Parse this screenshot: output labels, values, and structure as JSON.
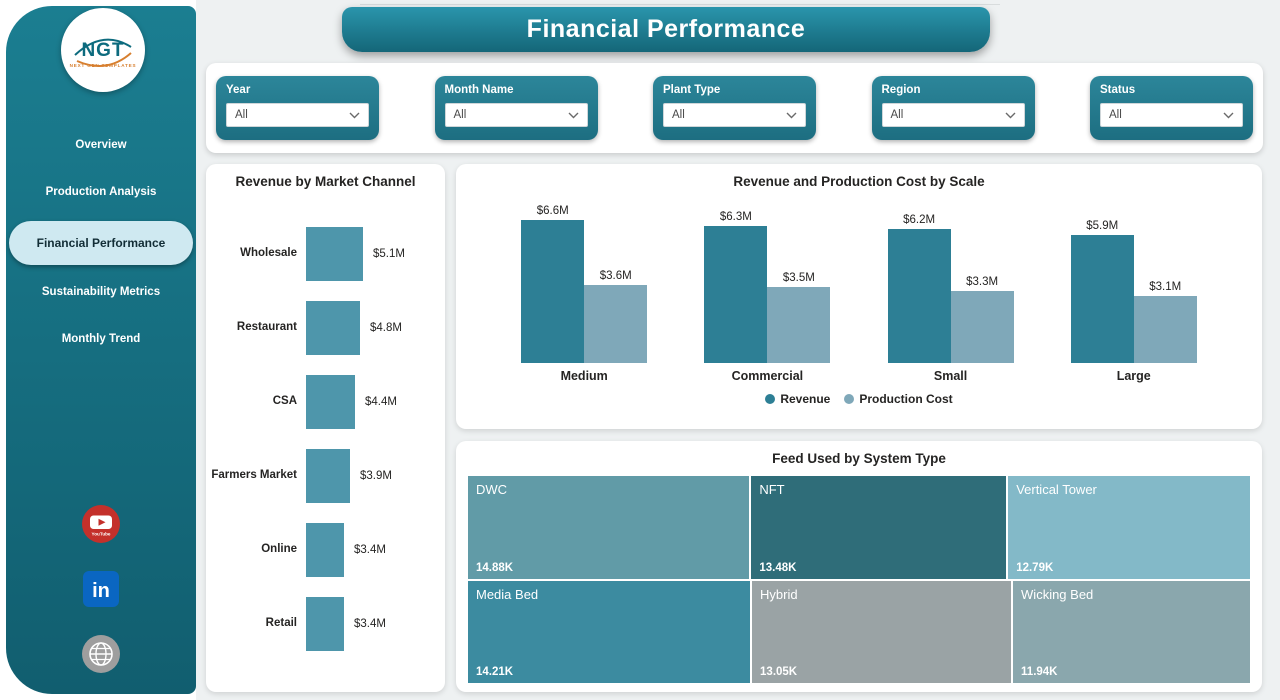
{
  "header": {
    "title": "Financial Performance"
  },
  "sidebar": {
    "logo": {
      "text": "NGT",
      "subtext": "NEXT GEN TEMPLATES"
    },
    "items": [
      {
        "label": "Overview",
        "active": false
      },
      {
        "label": "Production Analysis",
        "active": false
      },
      {
        "label": "Financial Performance",
        "active": true
      },
      {
        "label": "Sustainability Metrics",
        "active": false
      },
      {
        "label": "Monthly Trend",
        "active": false
      }
    ],
    "social": [
      "youtube-icon",
      "linkedin-icon",
      "website-icon"
    ],
    "linkedin_label": "in"
  },
  "filters": [
    {
      "label": "Year",
      "value": "All"
    },
    {
      "label": "Month Name",
      "value": "All"
    },
    {
      "label": "Plant Type",
      "value": "All"
    },
    {
      "label": "Region",
      "value": "All"
    },
    {
      "label": "Status",
      "value": "All"
    }
  ],
  "colors": {
    "sidebar": "#176f82",
    "accent_teal": "#1e7f93",
    "revenue": "#2d7f95",
    "production_cost": "#7fa8b9",
    "hbar": "#4e96ab",
    "active_pill": "#cfe9f1",
    "background": "#eef1f2"
  },
  "chart_data": [
    {
      "type": "bar",
      "orientation": "horizontal",
      "title": "Revenue by Market Channel",
      "categories": [
        "Wholesale",
        "Restaurant",
        "CSA",
        "Farmers Market",
        "Online",
        "Retail"
      ],
      "values": [
        5.1,
        4.8,
        4.4,
        3.9,
        3.4,
        3.4
      ],
      "value_labels": [
        "$5.1M",
        "$4.8M",
        "$4.4M",
        "$3.9M",
        "$3.4M",
        "$3.4M"
      ],
      "unit": "M USD",
      "bar_color": "#4e96ab",
      "xlim": [
        0,
        5.1
      ]
    },
    {
      "type": "bar",
      "title": "Revenue and Production Cost by Scale",
      "categories": [
        "Medium",
        "Commercial",
        "Small",
        "Large"
      ],
      "series": [
        {
          "name": "Revenue",
          "color": "#2d7f95",
          "values": [
            6.6,
            6.3,
            6.2,
            5.9
          ],
          "value_labels": [
            "$6.6M",
            "$6.3M",
            "$6.2M",
            "$5.9M"
          ]
        },
        {
          "name": "Production Cost",
          "color": "#7fa8b9",
          "values": [
            3.6,
            3.5,
            3.3,
            3.1
          ],
          "value_labels": [
            "$3.6M",
            "$3.5M",
            "$3.3M",
            "$3.1M"
          ]
        }
      ],
      "legend_position": "bottom",
      "ylim": [
        0,
        7
      ]
    },
    {
      "type": "treemap",
      "title": "Feed Used by System Type",
      "cells": [
        {
          "name": "DWC",
          "value": 14.88,
          "label": "14.88K",
          "color": "#619ba7",
          "row": 0
        },
        {
          "name": "NFT",
          "value": 13.48,
          "label": "13.48K",
          "color": "#2f6d79",
          "row": 0
        },
        {
          "name": "Vertical Tower",
          "value": 12.79,
          "label": "12.79K",
          "color": "#83b9c8",
          "row": 0
        },
        {
          "name": "Media Bed",
          "value": 14.21,
          "label": "14.21K",
          "color": "#3c8ba0",
          "row": 1
        },
        {
          "name": "Hybrid",
          "value": 13.05,
          "label": "13.05K",
          "color": "#9aa3a5",
          "row": 1
        },
        {
          "name": "Wicking Bed",
          "value": 11.94,
          "label": "11.94K",
          "color": "#8aa7ad",
          "row": 1
        }
      ]
    }
  ]
}
